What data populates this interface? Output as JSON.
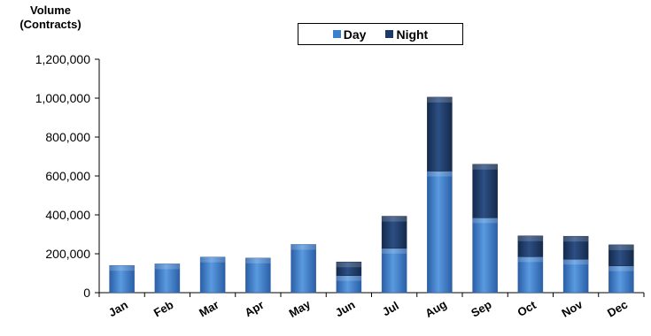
{
  "chart_data": {
    "type": "bar",
    "stacked": true,
    "title": "",
    "ylabel": "Volume\n(Contracts)",
    "ylabel_lines": [
      "Volume",
      "(Contracts)"
    ],
    "xlabel": "",
    "ylim": [
      0,
      1200000
    ],
    "yticks": [
      0,
      200000,
      400000,
      600000,
      800000,
      1000000,
      1200000
    ],
    "ytick_labels": [
      "0",
      "200,000",
      "400,000",
      "600,000",
      "800,000",
      "1,000,000",
      "1,200,000"
    ],
    "grid": false,
    "legend_position": "top-center",
    "categories": [
      "Jan",
      "Feb",
      "Mar",
      "Apr",
      "May",
      "Jun",
      "Jul",
      "Aug",
      "Sep",
      "Oct",
      "Nov",
      "Dec"
    ],
    "series": [
      {
        "name": "Day",
        "color": "#3d7fcf",
        "values": [
          140000,
          148000,
          183000,
          178000,
          248000,
          88000,
          228000,
          625000,
          385000,
          185000,
          172000,
          138000
        ]
      },
      {
        "name": "Night",
        "color": "#1d3a66",
        "values": [
          0,
          0,
          0,
          0,
          0,
          70000,
          165000,
          380000,
          275000,
          107000,
          118000,
          108000
        ]
      }
    ]
  }
}
